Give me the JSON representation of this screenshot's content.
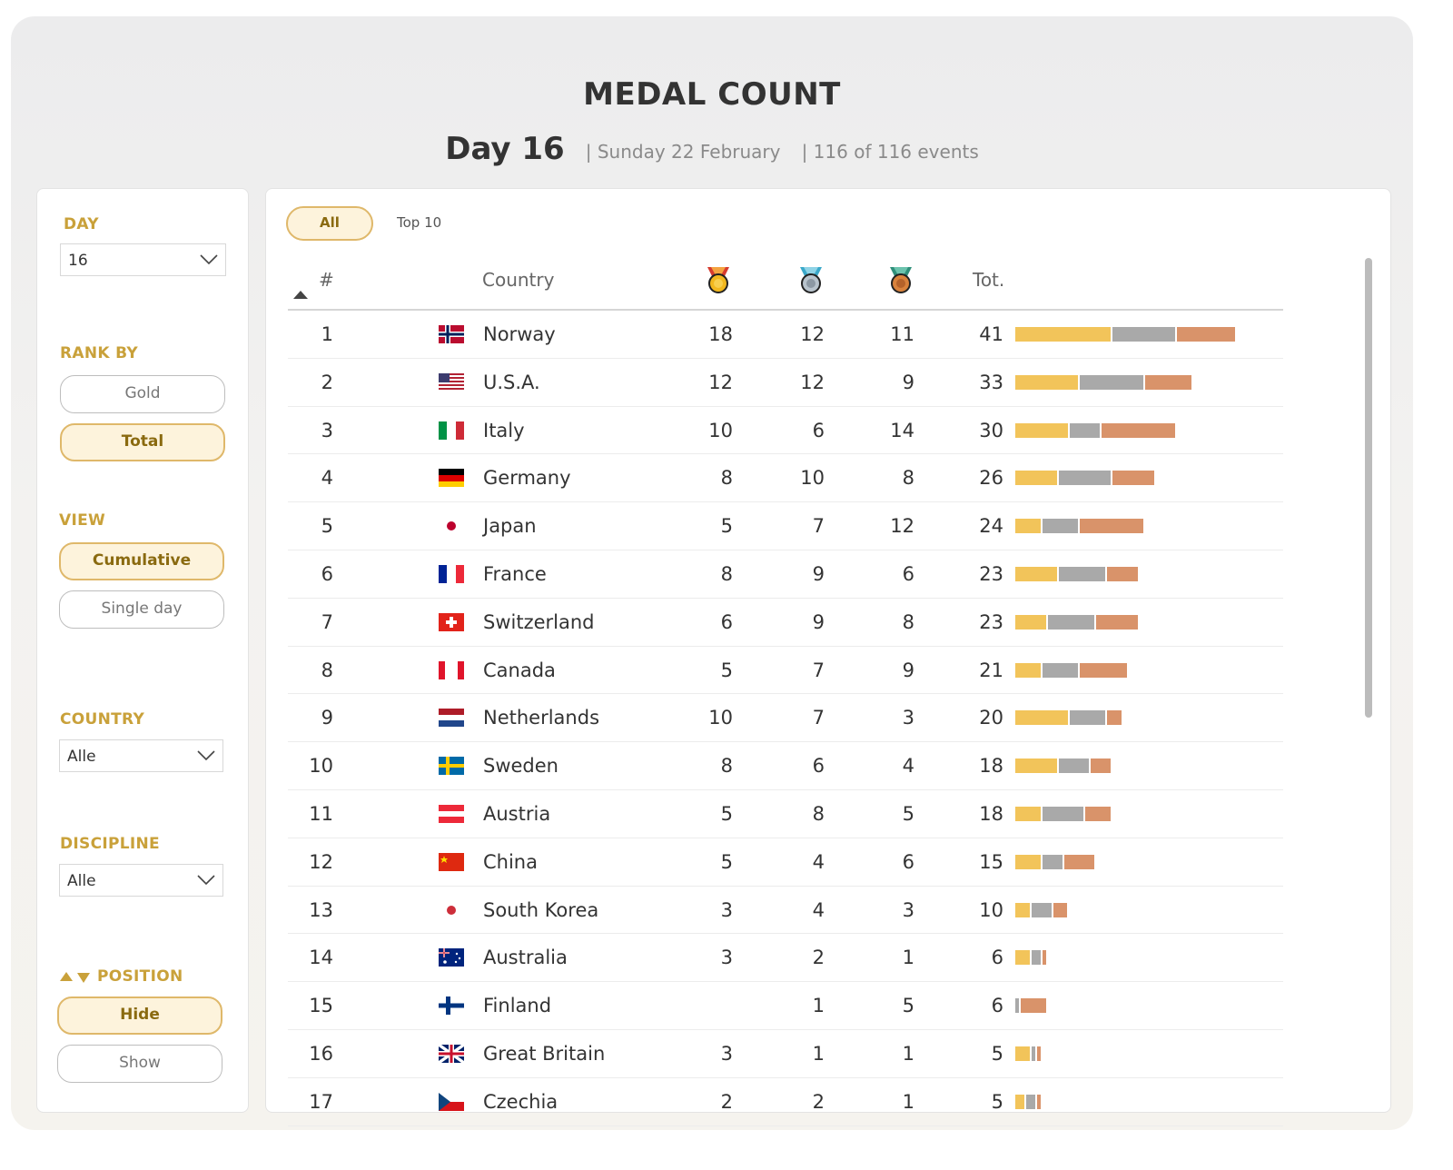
{
  "header": {
    "title": "MEDAL COUNT",
    "day": "Day 16",
    "date": "| Sunday 22 February",
    "events": "| 116 of 116 events"
  },
  "sidebar": {
    "day_label": "DAY",
    "day_value": "16",
    "rank_by_label": "RANK BY",
    "rank_by_options": [
      "Gold",
      "Total"
    ],
    "rank_by_selected": "Total",
    "view_label": "VIEW",
    "view_options": [
      "Cumulative",
      "Single day"
    ],
    "view_selected": "Cumulative",
    "country_label": "COUNTRY",
    "country_value": "Alle",
    "discipline_label": "DISCIPLINE",
    "discipline_value": "Alle",
    "position_label": "POSITION",
    "position_options": [
      "Hide",
      "Show"
    ],
    "position_selected": "Hide"
  },
  "tabs": {
    "all": "All",
    "top10": "Top 10",
    "selected": "All"
  },
  "table": {
    "col_rank": "#",
    "col_country": "Country",
    "col_total": "Tot.",
    "colors": {
      "gold": "#f2c45a",
      "silver": "#a9a9a9",
      "bronze": "#d9936a"
    },
    "rows": [
      {
        "rank": "1",
        "country": "Norway",
        "flag": "norway",
        "gold": "18",
        "silver": "12",
        "bronze": "11",
        "total": "41"
      },
      {
        "rank": "2",
        "country": "U.S.A.",
        "flag": "usa",
        "gold": "12",
        "silver": "12",
        "bronze": "9",
        "total": "33"
      },
      {
        "rank": "3",
        "country": "Italy",
        "flag": "italy",
        "gold": "10",
        "silver": "6",
        "bronze": "14",
        "total": "30"
      },
      {
        "rank": "4",
        "country": "Germany",
        "flag": "germany",
        "gold": "8",
        "silver": "10",
        "bronze": "8",
        "total": "26"
      },
      {
        "rank": "5",
        "country": "Japan",
        "flag": "japan",
        "gold": "5",
        "silver": "7",
        "bronze": "12",
        "total": "24"
      },
      {
        "rank": "6",
        "country": "France",
        "flag": "france",
        "gold": "8",
        "silver": "9",
        "bronze": "6",
        "total": "23"
      },
      {
        "rank": "7",
        "country": "Switzerland",
        "flag": "switzerland",
        "gold": "6",
        "silver": "9",
        "bronze": "8",
        "total": "23"
      },
      {
        "rank": "8",
        "country": "Canada",
        "flag": "canada",
        "gold": "5",
        "silver": "7",
        "bronze": "9",
        "total": "21"
      },
      {
        "rank": "9",
        "country": "Netherlands",
        "flag": "netherlands",
        "gold": "10",
        "silver": "7",
        "bronze": "3",
        "total": "20"
      },
      {
        "rank": "10",
        "country": "Sweden",
        "flag": "sweden",
        "gold": "8",
        "silver": "6",
        "bronze": "4",
        "total": "18"
      },
      {
        "rank": "11",
        "country": "Austria",
        "flag": "austria",
        "gold": "5",
        "silver": "8",
        "bronze": "5",
        "total": "18"
      },
      {
        "rank": "12",
        "country": "China",
        "flag": "china",
        "gold": "5",
        "silver": "4",
        "bronze": "6",
        "total": "15"
      },
      {
        "rank": "13",
        "country": "South Korea",
        "flag": "south-korea",
        "gold": "3",
        "silver": "4",
        "bronze": "3",
        "total": "10"
      },
      {
        "rank": "14",
        "country": "Australia",
        "flag": "australia",
        "gold": "3",
        "silver": "2",
        "bronze": "1",
        "total": "6"
      },
      {
        "rank": "15",
        "country": "Finland",
        "flag": "finland",
        "gold": "",
        "silver": "1",
        "bronze": "5",
        "total": "6"
      },
      {
        "rank": "16",
        "country": "Great Britain",
        "flag": "great-britain",
        "gold": "3",
        "silver": "1",
        "bronze": "1",
        "total": "5"
      },
      {
        "rank": "17",
        "country": "Czechia",
        "flag": "czechia",
        "gold": "2",
        "silver": "2",
        "bronze": "1",
        "total": "5"
      }
    ]
  }
}
